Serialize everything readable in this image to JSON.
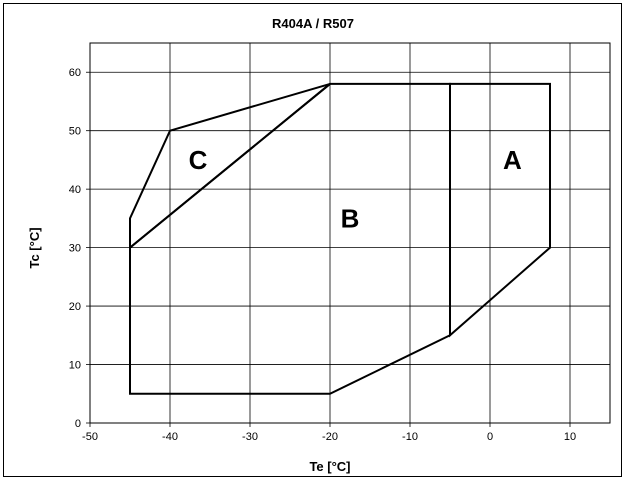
{
  "chart_data": {
    "type": "line",
    "title": "R404A / R507",
    "xlabel": "Te [°C]",
    "ylabel": "Tc [°C]",
    "xlim": [
      -50,
      15
    ],
    "ylim": [
      0,
      65
    ],
    "xticks": [
      -50,
      -40,
      -30,
      -20,
      -10,
      0,
      10
    ],
    "yticks": [
      0,
      10,
      20,
      30,
      40,
      50,
      60
    ],
    "grid": true,
    "regions": [
      {
        "name": "A",
        "label_at": [
          2.8,
          45
        ],
        "points": [
          [
            -5,
            58
          ],
          [
            7.5,
            58
          ],
          [
            7.5,
            30
          ],
          [
            -5,
            15
          ]
        ]
      },
      {
        "name": "B",
        "label_at": [
          -17.5,
          35
        ],
        "points": [
          [
            -45,
            30
          ],
          [
            -20,
            58
          ],
          [
            -5,
            58
          ],
          [
            -5,
            15
          ],
          [
            -20,
            5
          ],
          [
            -45,
            5
          ]
        ]
      },
      {
        "name": "C",
        "label_at": [
          -36.5,
          45
        ],
        "points": [
          [
            -45,
            30
          ],
          [
            -45,
            35
          ],
          [
            -40,
            50
          ],
          [
            -20,
            58
          ]
        ]
      }
    ]
  }
}
